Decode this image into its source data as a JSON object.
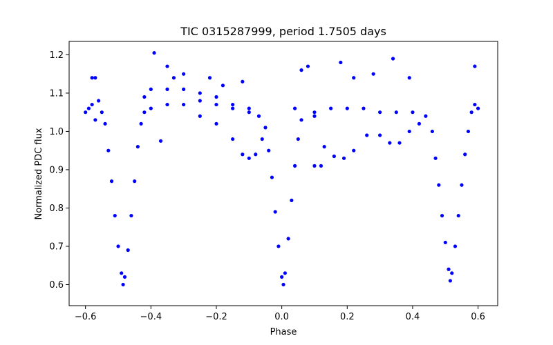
{
  "chart_data": {
    "type": "scatter",
    "title": "TIC 0315287999, period 1.7505 days",
    "xlabel": "Phase",
    "ylabel": "Normalized PDC flux",
    "xlim": [
      -0.65,
      0.66
    ],
    "ylim": [
      0.545,
      1.235
    ],
    "xticks": [
      {
        "value": -0.6,
        "label": "−0.6"
      },
      {
        "value": -0.4,
        "label": "−0.4"
      },
      {
        "value": -0.2,
        "label": "−0.2"
      },
      {
        "value": 0.0,
        "label": "0.0"
      },
      {
        "value": 0.2,
        "label": "0.2"
      },
      {
        "value": 0.4,
        "label": "0.4"
      },
      {
        "value": 0.6,
        "label": "0.6"
      }
    ],
    "yticks": [
      {
        "value": 0.6,
        "label": "0.6"
      },
      {
        "value": 0.7,
        "label": "0.7"
      },
      {
        "value": 0.8,
        "label": "0.8"
      },
      {
        "value": 0.9,
        "label": "0.9"
      },
      {
        "value": 1.0,
        "label": "1.0"
      },
      {
        "value": 1.1,
        "label": "1.1"
      },
      {
        "value": 1.2,
        "label": "1.2"
      }
    ],
    "marker_color": "#0000ff",
    "grid": false,
    "series": [
      {
        "values_described": "phase-folded eclipsing binary light curve",
        "points": [
          [
            -0.6,
            1.05
          ],
          [
            -0.59,
            1.06
          ],
          [
            -0.58,
            1.07
          ],
          [
            -0.57,
            1.03
          ],
          [
            -0.56,
            1.08
          ],
          [
            -0.55,
            1.05
          ],
          [
            -0.54,
            1.02
          ],
          [
            -0.53,
            0.95
          ],
          [
            -0.52,
            0.87
          ],
          [
            -0.51,
            0.78
          ],
          [
            -0.5,
            0.7
          ],
          [
            -0.49,
            0.63
          ],
          [
            -0.485,
            0.6
          ],
          [
            -0.48,
            0.62
          ],
          [
            -0.47,
            0.69
          ],
          [
            -0.46,
            0.78
          ],
          [
            -0.45,
            0.87
          ],
          [
            -0.44,
            0.96
          ],
          [
            -0.43,
            1.02
          ],
          [
            -0.42,
            1.05
          ],
          [
            -0.4,
            1.06
          ],
          [
            -0.35,
            1.07
          ],
          [
            -0.3,
            1.07
          ],
          [
            -0.25,
            1.08
          ],
          [
            -0.2,
            1.07
          ],
          [
            -0.15,
            1.06
          ],
          [
            -0.1,
            1.05
          ],
          [
            -0.07,
            1.04
          ],
          [
            -0.05,
            1.01
          ],
          [
            -0.04,
            0.95
          ],
          [
            -0.03,
            0.88
          ],
          [
            -0.02,
            0.79
          ],
          [
            -0.01,
            0.7
          ],
          [
            0.0,
            0.62
          ],
          [
            0.005,
            0.6
          ],
          [
            0.01,
            0.63
          ],
          [
            0.02,
            0.72
          ],
          [
            0.03,
            0.82
          ],
          [
            0.04,
            0.91
          ],
          [
            0.05,
            0.98
          ],
          [
            0.06,
            1.03
          ],
          [
            0.1,
            1.05
          ],
          [
            0.15,
            1.06
          ],
          [
            0.2,
            1.06
          ],
          [
            0.25,
            1.06
          ],
          [
            0.3,
            1.05
          ],
          [
            0.35,
            1.05
          ],
          [
            0.4,
            1.05
          ],
          [
            0.44,
            1.04
          ],
          [
            0.46,
            1.0
          ],
          [
            0.47,
            0.93
          ],
          [
            0.48,
            0.86
          ],
          [
            0.49,
            0.78
          ],
          [
            0.5,
            0.71
          ],
          [
            0.51,
            0.64
          ],
          [
            0.515,
            0.61
          ],
          [
            0.52,
            0.63
          ],
          [
            0.53,
            0.7
          ],
          [
            0.54,
            0.78
          ],
          [
            0.55,
            0.86
          ],
          [
            0.56,
            0.94
          ],
          [
            0.57,
            1.0
          ],
          [
            0.58,
            1.05
          ],
          [
            0.59,
            1.07
          ],
          [
            0.6,
            1.06
          ]
        ]
      },
      {
        "values_described": "upper arc branch",
        "points": [
          [
            -0.42,
            1.09
          ],
          [
            -0.4,
            1.11
          ],
          [
            -0.35,
            1.11
          ],
          [
            -0.3,
            1.11
          ],
          [
            -0.25,
            1.1
          ],
          [
            -0.2,
            1.09
          ],
          [
            -0.15,
            1.07
          ],
          [
            -0.1,
            1.06
          ]
        ]
      },
      {
        "values_described": "lower dip branches",
        "points": [
          [
            -0.25,
            1.04
          ],
          [
            -0.2,
            1.02
          ],
          [
            -0.15,
            0.98
          ],
          [
            -0.12,
            0.94
          ],
          [
            -0.1,
            0.93
          ],
          [
            -0.08,
            0.94
          ],
          [
            -0.06,
            0.98
          ],
          [
            0.1,
            1.04
          ],
          [
            0.13,
            0.96
          ],
          [
            0.16,
            0.935
          ],
          [
            0.19,
            0.93
          ],
          [
            0.22,
            0.95
          ],
          [
            0.26,
            0.99
          ],
          [
            0.3,
            0.99
          ],
          [
            0.33,
            0.97
          ],
          [
            0.36,
            0.97
          ],
          [
            0.39,
            1.0
          ],
          [
            0.42,
            1.02
          ]
        ]
      },
      {
        "values_described": "scattered outliers",
        "points": [
          [
            -0.39,
            1.205
          ],
          [
            -0.35,
            1.17
          ],
          [
            -0.33,
            1.14
          ],
          [
            -0.3,
            1.15
          ],
          [
            -0.22,
            1.14
          ],
          [
            -0.18,
            1.12
          ],
          [
            -0.12,
            1.13
          ],
          [
            -0.37,
            0.975
          ],
          [
            0.06,
            1.16
          ],
          [
            0.08,
            1.17
          ],
          [
            0.18,
            1.18
          ],
          [
            0.22,
            1.14
          ],
          [
            0.28,
            1.15
          ],
          [
            0.34,
            1.19
          ],
          [
            0.39,
            1.14
          ],
          [
            0.1,
            0.91
          ],
          [
            0.12,
            0.91
          ],
          [
            0.59,
            1.17
          ],
          [
            -0.58,
            1.14
          ],
          [
            -0.57,
            1.14
          ],
          [
            0.04,
            1.06
          ]
        ]
      }
    ]
  }
}
